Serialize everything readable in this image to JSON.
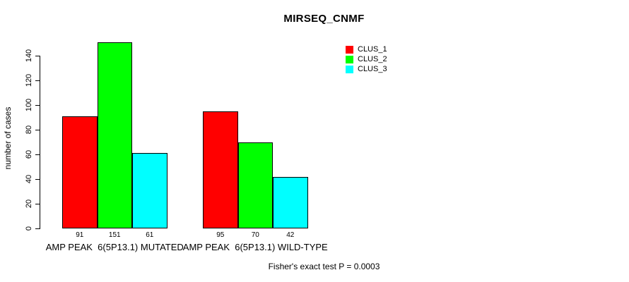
{
  "chart_data": {
    "type": "bar",
    "title": "MIRSEQ_CNMF",
    "xlabel": "",
    "ylabel": "number of cases",
    "categories": [
      "AMP PEAK  6(5P13.1) MUTATED",
      "AMP PEAK  6(5P13.1) WILD-TYPE"
    ],
    "series": [
      {
        "name": "CLUS_1",
        "color": "#ff0000",
        "values": [
          91,
          95
        ]
      },
      {
        "name": "CLUS_2",
        "color": "#00ff00",
        "values": [
          151,
          70
        ]
      },
      {
        "name": "CLUS_3",
        "color": "#00ffff",
        "values": [
          61,
          42
        ]
      }
    ],
    "value_labels_shown": true,
    "yticks": [
      0,
      20,
      40,
      60,
      80,
      100,
      120,
      140
    ],
    "ylim": [
      0,
      155
    ],
    "grid": false,
    "legend_position": "top-right",
    "annotation": "Fisher's exact test P = 0.0003",
    "bar_border_color": "#000000",
    "text_color": "#000000",
    "background_color": "#ffffff"
  }
}
